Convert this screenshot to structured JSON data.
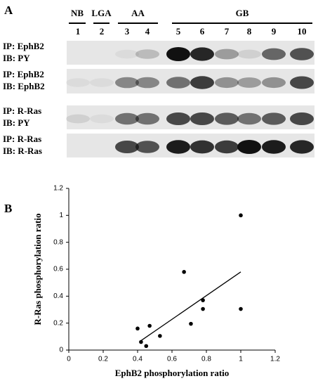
{
  "panel_a": {
    "label": "A",
    "groups": [
      "NB",
      "LGA",
      "AA",
      "GB"
    ],
    "lanes": [
      "1",
      "2",
      "3",
      "4",
      "5",
      "6",
      "7",
      "8",
      "9",
      "10"
    ],
    "blots": [
      [
        "IP: EphB2",
        "IB: PY"
      ],
      [
        "IP: EphB2",
        "IB: EphB2"
      ],
      [
        "IP: R-Ras",
        "IB: PY"
      ],
      [
        "IP: R-Ras",
        "IB: R-Ras"
      ]
    ]
  },
  "panel_b_label": "B",
  "chart_data": {
    "type": "scatter",
    "x_label": "EphB2 phosphorylation ratio",
    "y_label": "R-Ras phosphorylation ratio",
    "x": [
      0.4,
      0.42,
      0.45,
      0.47,
      0.53,
      0.67,
      0.71,
      0.78,
      0.78,
      1.0,
      1.0
    ],
    "values": [
      0.16,
      0.06,
      0.03,
      0.18,
      0.105,
      0.58,
      0.195,
      0.37,
      0.305,
      1.0,
      0.305
    ],
    "trend_line": {
      "x": [
        0.42,
        1.0
      ],
      "y": [
        0.07,
        0.58
      ]
    },
    "color": "#000000",
    "xlim": [
      0,
      1.2
    ],
    "ylim": [
      0,
      1.2
    ],
    "xticks": [
      0,
      0.2,
      0.4,
      0.6,
      0.8,
      1,
      1.2
    ],
    "yticks": [
      0,
      0.2,
      0.4,
      0.6,
      0.8,
      1,
      1.2
    ]
  }
}
